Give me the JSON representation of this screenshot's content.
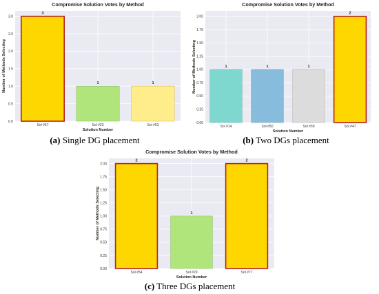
{
  "chart_data": [
    {
      "type": "bar",
      "title": "Compromise Solution Votes by Method",
      "xlabel": "Solution Number",
      "ylabel": "Number of Methods Selecting",
      "categories": [
        "Sol #67",
        "Sol #23",
        "Sol #53"
      ],
      "values": [
        3,
        1,
        1
      ],
      "data_labels": [
        "3",
        "1",
        "1"
      ],
      "bar_colors": [
        "#FFD700",
        "#B0E57C",
        "#FFEC8B"
      ],
      "bar_edge_colors": [
        "#B22222",
        "#9BBF78",
        "#D4C373"
      ],
      "ylim": [
        0,
        3.15
      ],
      "yticks": [
        "0.0",
        "0.5",
        "1.0",
        "1.5",
        "2.0",
        "2.5",
        "3.0"
      ],
      "ytick_values": [
        0,
        0.5,
        1.0,
        1.5,
        2.0,
        2.5,
        3.0
      ],
      "grid": true,
      "plot_bg": "#EAEAF2"
    },
    {
      "type": "bar",
      "title": "Compromise Solution Votes by Method",
      "xlabel": "Solution Number",
      "ylabel": "Number of Methods Selecting",
      "categories": [
        "Sol #14",
        "Sol #50",
        "Sol #39",
        "Sol #47"
      ],
      "values": [
        1,
        1,
        1,
        2
      ],
      "data_labels": [
        "1",
        "1",
        "1",
        "2"
      ],
      "bar_colors": [
        "#7FD8D0",
        "#88BCDD",
        "#DCDCDC",
        "#FFD700"
      ],
      "bar_edge_colors": [
        "#7FB9B3",
        "#7FA6BF",
        "#B8B8B8",
        "#B22222"
      ],
      "ylim": [
        0,
        2.1
      ],
      "yticks": [
        "0.00",
        "0.25",
        "0.50",
        "0.75",
        "1.00",
        "1.25",
        "1.50",
        "1.75",
        "2.00"
      ],
      "ytick_values": [
        0,
        0.25,
        0.5,
        0.75,
        1.0,
        1.25,
        1.5,
        1.75,
        2.0
      ],
      "grid": true,
      "plot_bg": "#EAEAF2"
    },
    {
      "type": "bar",
      "title": "Compromise Solution Votes by Method",
      "xlabel": "Solution Number",
      "ylabel": "Number of Methods Selecting",
      "categories": [
        "Sol #54",
        "Sol #29",
        "Sol #77"
      ],
      "values": [
        2,
        1,
        2
      ],
      "data_labels": [
        "2",
        "1",
        "2"
      ],
      "bar_colors": [
        "#FFD700",
        "#B0E57C",
        "#FFD700"
      ],
      "bar_edge_colors": [
        "#B22222",
        "#9BBF78",
        "#B22222"
      ],
      "ylim": [
        0,
        2.1
      ],
      "yticks": [
        "0.00",
        "0.25",
        "0.50",
        "0.75",
        "1.00",
        "1.25",
        "1.50",
        "1.75",
        "2.00"
      ],
      "ytick_values": [
        0,
        0.25,
        0.5,
        0.75,
        1.0,
        1.25,
        1.5,
        1.75,
        2.0
      ],
      "grid": true,
      "plot_bg": "#EAEAF2"
    }
  ],
  "captions": [
    {
      "letter": "(a)",
      "text": " Single DG placement"
    },
    {
      "letter": "(b)",
      "text": " Two DGs placement"
    },
    {
      "letter": "(c)",
      "text": " Three DGs placement"
    }
  ]
}
